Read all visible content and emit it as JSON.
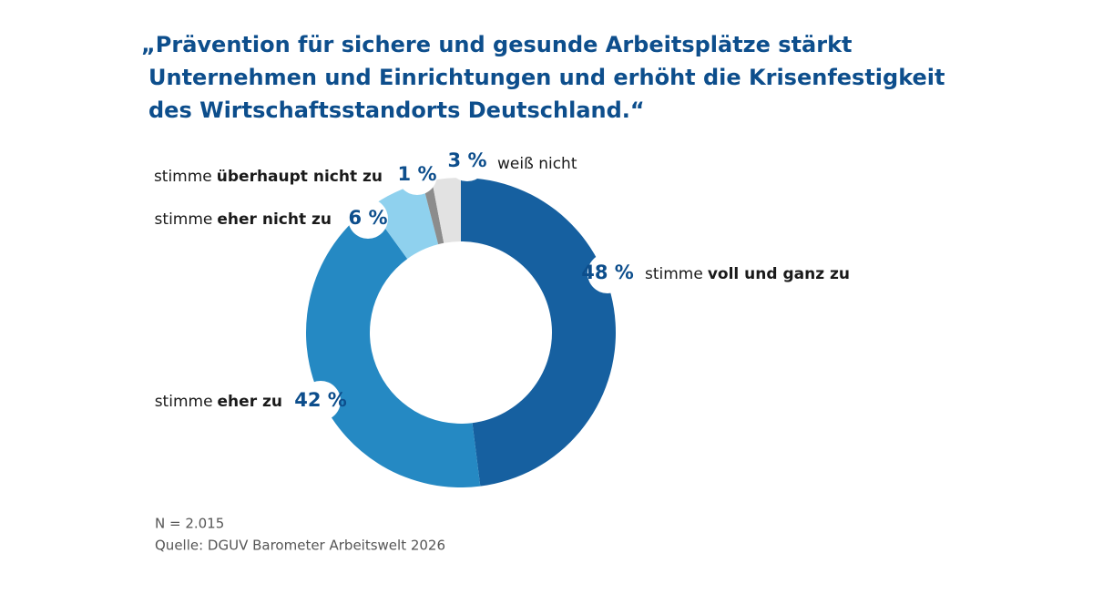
{
  "chart_data": {
    "type": "donut",
    "title_lines": [
      "„Prävention für sichere und gesunde Arbeitsplätze stärkt",
      "Unternehmen und Einrichtungen und erhöht die Krisenfestigkeit",
      "des Wirtschaftsstandorts Deutschland.“"
    ],
    "categories": [
      [
        "stimme",
        "voll und ganz zu"
      ],
      [
        "stimme",
        "eher zu"
      ],
      [
        "stimme",
        "eher nicht zu"
      ],
      [
        "stimme",
        "überhaupt nicht zu"
      ],
      [
        "weiß nicht"
      ]
    ],
    "values": [
      48,
      42,
      6,
      1,
      3
    ],
    "value_labels": [
      "48 %",
      "42 %",
      "6 %",
      "1 %",
      "3 %"
    ],
    "colors": [
      "#1660a0",
      "#2589c3",
      "#8fd1ee",
      "#8c8c8c",
      "#e2e2e2"
    ],
    "notes": [
      "N = 2.015",
      "Quelle: DGUV Barometer Arbeitswelt 2026"
    ]
  }
}
